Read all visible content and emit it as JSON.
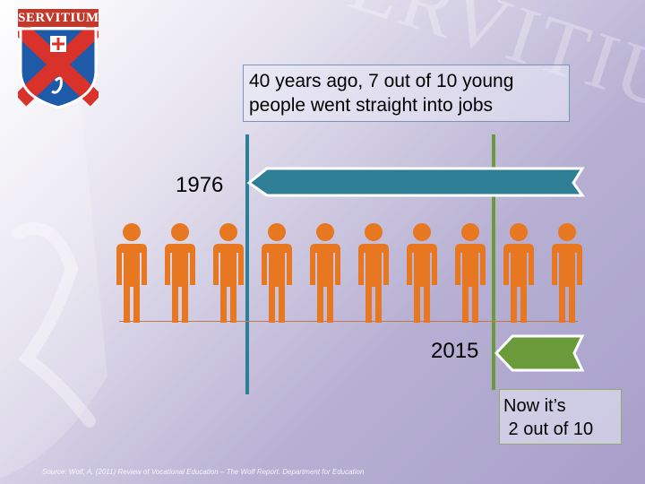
{
  "logo": {
    "text": "SERVITIUM",
    "icon": "servitium-shield-logo"
  },
  "watermark": {
    "text": "SERVITIUM"
  },
  "headline_1976": {
    "lines": [
      "40 years ago, 7 out of 10 young",
      "people went straight into jobs"
    ]
  },
  "year_1976": "1976",
  "year_2015": "2015",
  "headline_2015": {
    "lines": [
      "Now it’s",
      " 2 out of 10"
    ]
  },
  "source": "Source: Wolf, A. (2011) Review of Vocational Education – The Wolf Report. Department for Education",
  "people": {
    "count": 10,
    "icon": "person-icon",
    "color": "#e87722"
  },
  "proportions": {
    "employed_1976": 7,
    "employed_2015": 2,
    "total": 10
  },
  "colors": {
    "arrow_1976": "#2e7f95",
    "arrow_2015": "#6a9a3a",
    "line_1976": "#2e7f95",
    "line_2015": "#6a9a3a"
  }
}
